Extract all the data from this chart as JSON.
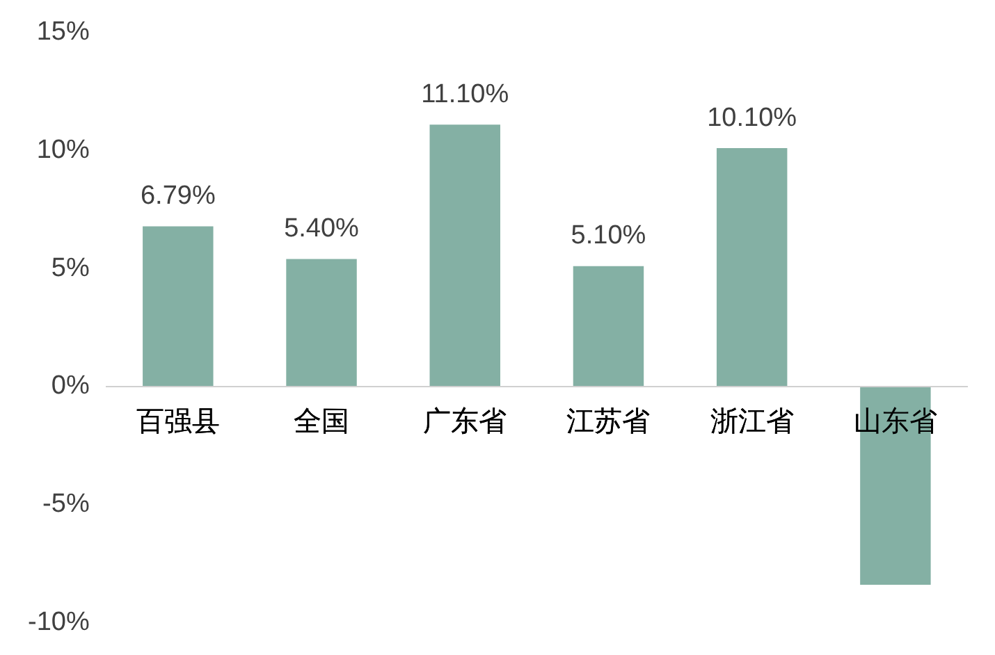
{
  "chart_data": {
    "type": "bar",
    "categories": [
      "百强县",
      "全国",
      "广东省",
      "江苏省",
      "浙江省",
      "山东省"
    ],
    "values": [
      6.79,
      5.4,
      11.1,
      5.1,
      10.1,
      -8.4
    ],
    "value_labels": [
      "6.79%",
      "5.40%",
      "11.10%",
      "5.10%",
      "10.10%",
      null
    ],
    "color": "#84b0a4",
    "ylim": [
      -10,
      15
    ],
    "yticks": [
      {
        "value": -10,
        "label": "-10%"
      },
      {
        "value": -5,
        "label": "-5%"
      },
      {
        "value": 0,
        "label": "0%"
      },
      {
        "value": 5,
        "label": "5%"
      },
      {
        "value": 10,
        "label": "10%"
      },
      {
        "value": 15,
        "label": "15%"
      }
    ],
    "grid": false,
    "legend": false
  }
}
